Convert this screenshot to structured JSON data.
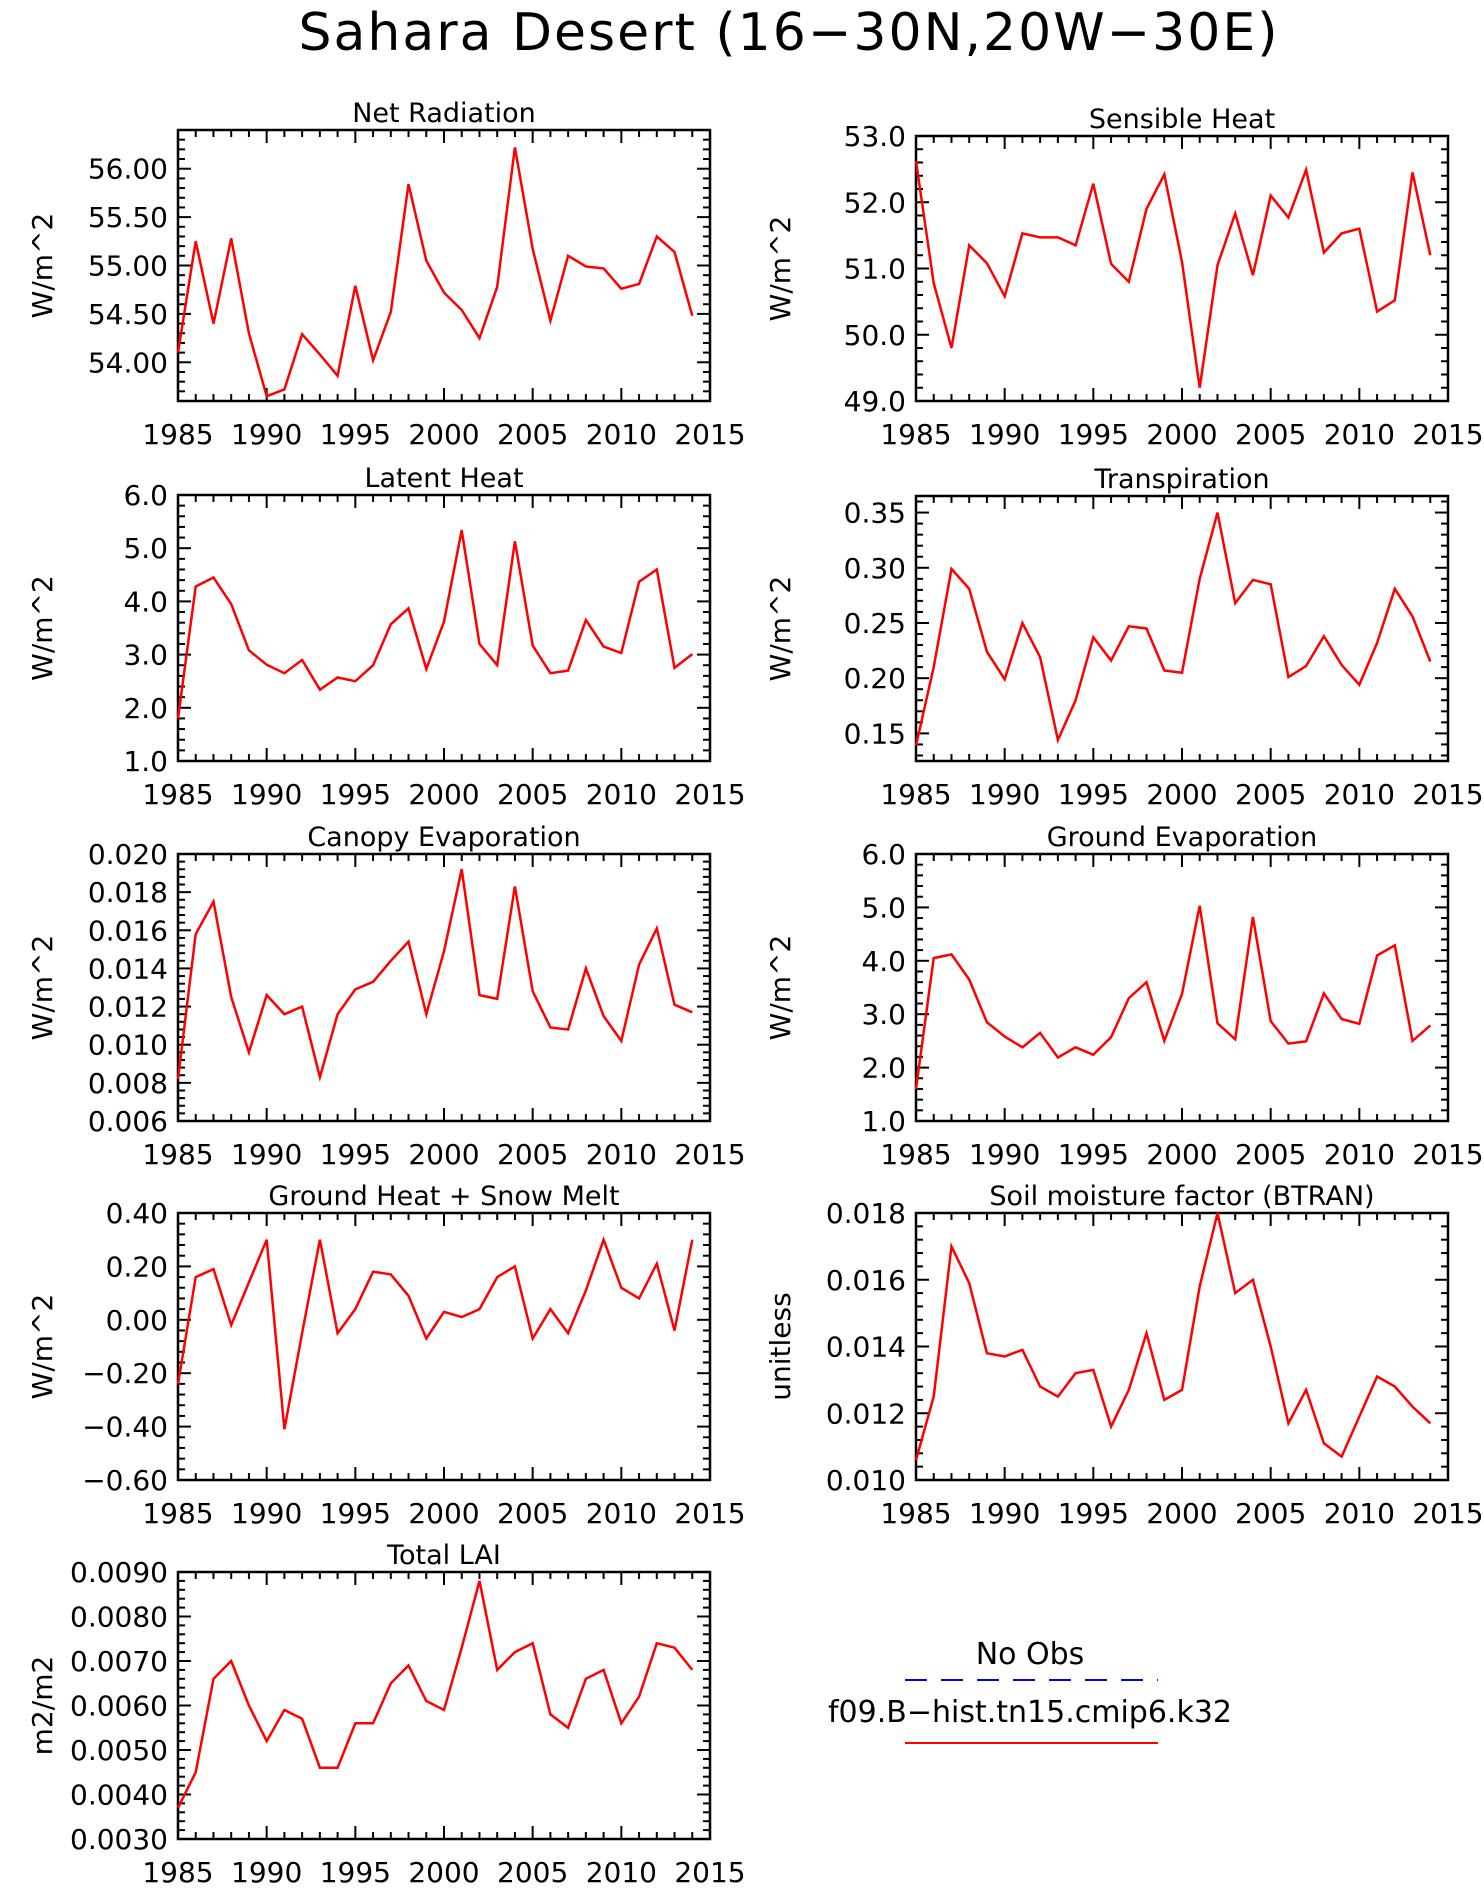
{
  "title": "Sahara Desert (16−30N,20W−30E)",
  "xaxis": {
    "ticks": [
      1985,
      1990,
      1995,
      2000,
      2005,
      2010,
      2015
    ],
    "tick_labels": [
      "1985",
      "1990",
      "1995",
      "2000",
      "2005",
      "2010",
      "2015"
    ]
  },
  "series_color": "#ff0000",
  "legend": {
    "items": [
      {
        "label": "No Obs",
        "color": "#0000ff",
        "style": "dashed"
      },
      {
        "label": "f09.B−hist.tn15.cmip6.k32",
        "color": "#ff0000",
        "style": "solid"
      }
    ]
  },
  "chart_data": [
    {
      "type": "line",
      "title": "Net Radiation",
      "ylabel": "W/m^2",
      "xlim": [
        1985,
        2015
      ],
      "ylim": [
        53.6,
        56.4
      ],
      "yticks": [
        54.0,
        54.5,
        55.0,
        55.5,
        56.0
      ],
      "ytick_labels": [
        "54.00",
        "54.50",
        "55.00",
        "55.50",
        "56.00"
      ],
      "series": [
        {
          "x_start": 1985,
          "values": [
            54.1,
            55.25,
            54.4,
            55.28,
            54.3,
            53.65,
            53.72,
            54.29,
            54.08,
            53.86,
            54.79,
            54.02,
            54.52,
            55.84,
            55.05,
            54.72,
            54.54,
            54.25,
            54.78,
            56.22,
            55.17,
            54.43,
            55.1,
            54.99,
            54.97,
            54.76,
            54.81,
            55.3,
            55.14,
            54.48
          ]
        }
      ]
    },
    {
      "type": "line",
      "title": "Sensible Heat",
      "ylabel": "W/m^2",
      "xlim": [
        1985,
        2015
      ],
      "ylim": [
        49.0,
        53.0
      ],
      "yticks": [
        49.0,
        50.0,
        51.0,
        52.0,
        53.0
      ],
      "ytick_labels": [
        "49.0",
        "50.0",
        "51.0",
        "52.0",
        "53.0"
      ],
      "series": [
        {
          "x_start": 1985,
          "values": [
            52.62,
            50.78,
            49.8,
            51.35,
            51.08,
            50.58,
            51.53,
            51.47,
            51.47,
            51.35,
            52.28,
            51.07,
            50.8,
            51.9,
            52.42,
            51.1,
            49.2,
            51.05,
            51.83,
            50.9,
            52.1,
            51.77,
            52.49,
            51.24,
            51.53,
            51.6,
            50.35,
            50.52,
            52.45,
            51.2
          ]
        }
      ]
    },
    {
      "type": "line",
      "title": "Latent Heat",
      "ylabel": "W/m^2",
      "xlim": [
        1985,
        2015
      ],
      "ylim": [
        1.0,
        6.0
      ],
      "yticks": [
        1.0,
        2.0,
        3.0,
        4.0,
        5.0,
        6.0
      ],
      "ytick_labels": [
        "1.0",
        "2.0",
        "3.0",
        "4.0",
        "5.0",
        "6.0"
      ],
      "series": [
        {
          "x_start": 1985,
          "values": [
            1.8,
            4.28,
            4.45,
            3.95,
            3.08,
            2.81,
            2.65,
            2.9,
            2.34,
            2.57,
            2.5,
            2.8,
            3.57,
            3.87,
            2.73,
            3.62,
            5.34,
            3.2,
            2.8,
            5.13,
            3.17,
            2.65,
            2.7,
            3.65,
            3.15,
            3.03,
            4.37,
            4.6,
            2.75,
            3.01
          ]
        }
      ]
    },
    {
      "type": "line",
      "title": "Transpiration",
      "ylabel": "W/m^2",
      "xlim": [
        1985,
        2015
      ],
      "ylim": [
        0.125,
        0.365
      ],
      "yticks": [
        0.15,
        0.2,
        0.25,
        0.3,
        0.35
      ],
      "ytick_labels": [
        "0.15",
        "0.20",
        "0.25",
        "0.30",
        "0.35"
      ],
      "series": [
        {
          "x_start": 1985,
          "values": [
            0.139,
            0.21,
            0.299,
            0.281,
            0.224,
            0.199,
            0.25,
            0.219,
            0.144,
            0.18,
            0.237,
            0.216,
            0.247,
            0.245,
            0.207,
            0.205,
            0.29,
            0.35,
            0.268,
            0.289,
            0.285,
            0.201,
            0.211,
            0.238,
            0.212,
            0.194,
            0.232,
            0.281,
            0.256,
            0.215
          ]
        }
      ]
    },
    {
      "type": "line",
      "title": "Canopy Evaporation",
      "ylabel": "W/m^2",
      "xlim": [
        1985,
        2015
      ],
      "ylim": [
        0.006,
        0.02
      ],
      "yticks": [
        0.006,
        0.008,
        0.01,
        0.012,
        0.014,
        0.016,
        0.018,
        0.02
      ],
      "ytick_labels": [
        "0.006",
        "0.008",
        "0.010",
        "0.012",
        "0.014",
        "0.016",
        "0.018",
        "0.020"
      ],
      "series": [
        {
          "x_start": 1985,
          "values": [
            0.0082,
            0.0158,
            0.0175,
            0.0125,
            0.0096,
            0.0126,
            0.0116,
            0.012,
            0.0083,
            0.0116,
            0.0129,
            0.0133,
            0.0144,
            0.0154,
            0.0116,
            0.0149,
            0.0192,
            0.0126,
            0.0124,
            0.0183,
            0.0128,
            0.0109,
            0.0108,
            0.014,
            0.0115,
            0.0102,
            0.0142,
            0.0161,
            0.0121,
            0.0117
          ]
        }
      ]
    },
    {
      "type": "line",
      "title": "Ground Evaporation",
      "ylabel": "W/m^2",
      "xlim": [
        1985,
        2015
      ],
      "ylim": [
        1.0,
        6.0
      ],
      "yticks": [
        1.0,
        2.0,
        3.0,
        4.0,
        5.0,
        6.0
      ],
      "ytick_labels": [
        "1.0",
        "2.0",
        "3.0",
        "4.0",
        "5.0",
        "6.0"
      ],
      "series": [
        {
          "x_start": 1985,
          "values": [
            1.6,
            4.05,
            4.12,
            3.65,
            2.85,
            2.58,
            2.38,
            2.65,
            2.19,
            2.38,
            2.24,
            2.57,
            3.3,
            3.6,
            2.5,
            3.38,
            5.03,
            2.83,
            2.53,
            4.82,
            2.87,
            2.45,
            2.49,
            3.39,
            2.91,
            2.82,
            4.1,
            4.29,
            2.5,
            2.79
          ]
        }
      ]
    },
    {
      "type": "line",
      "title": "Ground Heat + Snow Melt",
      "ylabel": "W/m^2",
      "xlim": [
        1985,
        2015
      ],
      "ylim": [
        -0.6,
        0.4
      ],
      "yticks": [
        -0.6,
        -0.4,
        -0.2,
        0.0,
        0.2,
        0.4
      ],
      "ytick_labels": [
        "−0.60",
        "−0.40",
        "−0.20",
        "0.00",
        "0.20",
        "0.40"
      ],
      "series": [
        {
          "x_start": 1985,
          "values": [
            -0.24,
            0.16,
            0.19,
            -0.02,
            0.14,
            0.3,
            -0.41,
            -0.05,
            0.3,
            -0.05,
            0.04,
            0.18,
            0.17,
            0.09,
            -0.07,
            0.03,
            0.01,
            0.04,
            0.16,
            0.2,
            -0.07,
            0.04,
            -0.05,
            0.11,
            0.3,
            0.12,
            0.08,
            0.21,
            -0.04,
            0.3
          ]
        }
      ]
    },
    {
      "type": "line",
      "title": "Soil moisture factor (BTRAN)",
      "ylabel": "unitless",
      "xlim": [
        1985,
        2015
      ],
      "ylim": [
        0.01,
        0.018
      ],
      "yticks": [
        0.01,
        0.012,
        0.014,
        0.016,
        0.018
      ],
      "ytick_labels": [
        "0.010",
        "0.012",
        "0.014",
        "0.016",
        "0.018"
      ],
      "series": [
        {
          "x_start": 1985,
          "values": [
            0.0106,
            0.0125,
            0.017,
            0.0159,
            0.0138,
            0.0137,
            0.0139,
            0.0128,
            0.0125,
            0.0132,
            0.0133,
            0.0116,
            0.0127,
            0.0144,
            0.0124,
            0.0127,
            0.0158,
            0.018,
            0.0156,
            0.016,
            0.014,
            0.0117,
            0.0127,
            0.0111,
            0.0107,
            0.0119,
            0.0131,
            0.0128,
            0.0122,
            0.0117
          ]
        }
      ]
    },
    {
      "type": "line",
      "title": "Total LAI",
      "ylabel": "m2/m2",
      "xlim": [
        1985,
        2015
      ],
      "ylim": [
        0.003,
        0.009
      ],
      "yticks": [
        0.003,
        0.004,
        0.005,
        0.006,
        0.007,
        0.008,
        0.009
      ],
      "ytick_labels": [
        "0.0030",
        "0.0040",
        "0.0050",
        "0.0060",
        "0.0070",
        "0.0080",
        "0.0090"
      ],
      "series": [
        {
          "x_start": 1985,
          "values": [
            0.0037,
            0.0045,
            0.0066,
            0.007,
            0.006,
            0.0052,
            0.0059,
            0.0057,
            0.0046,
            0.0046,
            0.0056,
            0.0056,
            0.0065,
            0.0069,
            0.0061,
            0.0059,
            0.0073,
            0.0088,
            0.0068,
            0.0072,
            0.0074,
            0.0058,
            0.0055,
            0.0066,
            0.0068,
            0.0056,
            0.0062,
            0.0074,
            0.0073,
            0.0068
          ]
        }
      ]
    }
  ]
}
